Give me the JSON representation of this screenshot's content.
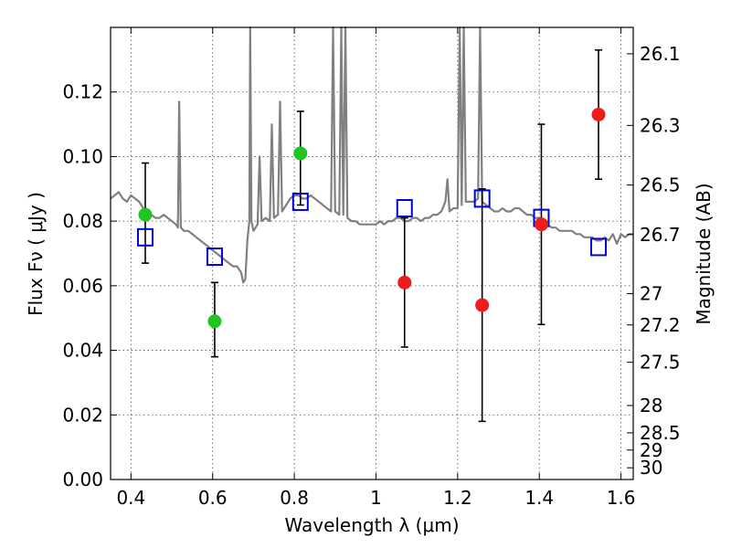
{
  "chart_data": {
    "type": "scatter",
    "xlabel": "Wavelength  λ (μm)",
    "ylabel": "Flux  Fν  ( μJy )",
    "ylabel_right": "Magnitude (AB)",
    "xlim": [
      0.35,
      1.63
    ],
    "ylim": [
      0.0,
      0.14
    ],
    "grid": true,
    "x_ticks": [
      {
        "value": 0.4,
        "label": "0.4"
      },
      {
        "value": 0.6,
        "label": "0.6"
      },
      {
        "value": 0.8,
        "label": "0.8"
      },
      {
        "value": 1.0,
        "label": "1"
      },
      {
        "value": 1.2,
        "label": "1.2"
      },
      {
        "value": 1.4,
        "label": "1.4"
      },
      {
        "value": 1.6,
        "label": "1.6"
      }
    ],
    "y_ticks": [
      {
        "value": 0.0,
        "label": "0.00"
      },
      {
        "value": 0.02,
        "label": "0.02"
      },
      {
        "value": 0.04,
        "label": "0.04"
      },
      {
        "value": 0.06,
        "label": "0.06"
      },
      {
        "value": 0.08,
        "label": "0.08"
      },
      {
        "value": 0.1,
        "label": "0.10"
      },
      {
        "value": 0.12,
        "label": "0.12"
      }
    ],
    "mag_ticks": [
      {
        "value": 26.1,
        "label": "26.1"
      },
      {
        "value": 26.3,
        "label": "26.3"
      },
      {
        "value": 26.5,
        "label": "26.5"
      },
      {
        "value": 26.7,
        "label": "26.7"
      },
      {
        "value": 27.0,
        "label": "27"
      },
      {
        "value": 27.2,
        "label": "27.2"
      },
      {
        "value": 27.5,
        "label": "27.5"
      },
      {
        "value": 28.0,
        "label": "28"
      },
      {
        "value": 28.5,
        "label": "28.5"
      },
      {
        "value": 29.0,
        "label": "29"
      },
      {
        "value": 30.0,
        "label": "30"
      }
    ],
    "series": [
      {
        "color": "#808080",
        "kind": "line",
        "points": [
          [
            0.35,
            0.087
          ],
          [
            0.36,
            0.088
          ],
          [
            0.37,
            0.089
          ],
          [
            0.38,
            0.087
          ],
          [
            0.39,
            0.086
          ],
          [
            0.4,
            0.088
          ],
          [
            0.41,
            0.087
          ],
          [
            0.42,
            0.086
          ],
          [
            0.43,
            0.084
          ],
          [
            0.44,
            0.083
          ],
          [
            0.45,
            0.082
          ],
          [
            0.46,
            0.081
          ],
          [
            0.47,
            0.081
          ],
          [
            0.48,
            0.082
          ],
          [
            0.49,
            0.081
          ],
          [
            0.5,
            0.08
          ],
          [
            0.51,
            0.079
          ],
          [
            0.515,
            0.078
          ],
          [
            0.518,
            0.117
          ],
          [
            0.522,
            0.078
          ],
          [
            0.53,
            0.077
          ],
          [
            0.54,
            0.077
          ],
          [
            0.55,
            0.076
          ],
          [
            0.56,
            0.075
          ],
          [
            0.57,
            0.074
          ],
          [
            0.58,
            0.073
          ],
          [
            0.59,
            0.072
          ],
          [
            0.6,
            0.071
          ],
          [
            0.61,
            0.07
          ],
          [
            0.62,
            0.069
          ],
          [
            0.63,
            0.068
          ],
          [
            0.64,
            0.067
          ],
          [
            0.65,
            0.066
          ],
          [
            0.66,
            0.066
          ],
          [
            0.67,
            0.064
          ],
          [
            0.675,
            0.061
          ],
          [
            0.68,
            0.062
          ],
          [
            0.685,
            0.074
          ],
          [
            0.69,
            0.08
          ],
          [
            0.692,
            0.14
          ],
          [
            0.695,
            0.08
          ],
          [
            0.7,
            0.077
          ],
          [
            0.71,
            0.079
          ],
          [
            0.715,
            0.1
          ],
          [
            0.72,
            0.08
          ],
          [
            0.73,
            0.081
          ],
          [
            0.74,
            0.08
          ],
          [
            0.745,
            0.11
          ],
          [
            0.75,
            0.081
          ],
          [
            0.76,
            0.082
          ],
          [
            0.765,
            0.117
          ],
          [
            0.77,
            0.083
          ],
          [
            0.78,
            0.085
          ],
          [
            0.79,
            0.087
          ],
          [
            0.8,
            0.088
          ],
          [
            0.81,
            0.088
          ],
          [
            0.82,
            0.087
          ],
          [
            0.83,
            0.087
          ],
          [
            0.84,
            0.088
          ],
          [
            0.85,
            0.087
          ],
          [
            0.86,
            0.086
          ],
          [
            0.87,
            0.085
          ],
          [
            0.88,
            0.084
          ],
          [
            0.89,
            0.083
          ],
          [
            0.895,
            0.14
          ],
          [
            0.9,
            0.083
          ],
          [
            0.91,
            0.082
          ],
          [
            0.915,
            0.14
          ],
          [
            0.92,
            0.082
          ],
          [
            0.925,
            0.14
          ],
          [
            0.93,
            0.081
          ],
          [
            0.94,
            0.08
          ],
          [
            0.95,
            0.08
          ],
          [
            0.96,
            0.079
          ],
          [
            0.97,
            0.079
          ],
          [
            0.98,
            0.079
          ],
          [
            0.99,
            0.079
          ],
          [
            1.0,
            0.079
          ],
          [
            1.01,
            0.08
          ],
          [
            1.02,
            0.079
          ],
          [
            1.03,
            0.08
          ],
          [
            1.04,
            0.08
          ],
          [
            1.05,
            0.081
          ],
          [
            1.06,
            0.081
          ],
          [
            1.07,
            0.08
          ],
          [
            1.08,
            0.08
          ],
          [
            1.09,
            0.081
          ],
          [
            1.1,
            0.081
          ],
          [
            1.11,
            0.08
          ],
          [
            1.12,
            0.081
          ],
          [
            1.13,
            0.081
          ],
          [
            1.14,
            0.082
          ],
          [
            1.15,
            0.082
          ],
          [
            1.16,
            0.083
          ],
          [
            1.17,
            0.086
          ],
          [
            1.175,
            0.093
          ],
          [
            1.18,
            0.083
          ],
          [
            1.19,
            0.084
          ],
          [
            1.2,
            0.084
          ],
          [
            1.205,
            0.14
          ],
          [
            1.21,
            0.085
          ],
          [
            1.215,
            0.14
          ],
          [
            1.22,
            0.086
          ],
          [
            1.23,
            0.086
          ],
          [
            1.24,
            0.086
          ],
          [
            1.25,
            0.087
          ],
          [
            1.255,
            0.14
          ],
          [
            1.26,
            0.086
          ],
          [
            1.27,
            0.085
          ],
          [
            1.28,
            0.084
          ],
          [
            1.29,
            0.083
          ],
          [
            1.3,
            0.083
          ],
          [
            1.31,
            0.084
          ],
          [
            1.32,
            0.083
          ],
          [
            1.33,
            0.083
          ],
          [
            1.34,
            0.084
          ],
          [
            1.35,
            0.084
          ],
          [
            1.36,
            0.083
          ],
          [
            1.37,
            0.082
          ],
          [
            1.38,
            0.082
          ],
          [
            1.39,
            0.081
          ],
          [
            1.4,
            0.081
          ],
          [
            1.41,
            0.08
          ],
          [
            1.42,
            0.079
          ],
          [
            1.43,
            0.078
          ],
          [
            1.44,
            0.078
          ],
          [
            1.45,
            0.077
          ],
          [
            1.46,
            0.077
          ],
          [
            1.47,
            0.077
          ],
          [
            1.48,
            0.077
          ],
          [
            1.49,
            0.076
          ],
          [
            1.5,
            0.076
          ],
          [
            1.51,
            0.075
          ],
          [
            1.52,
            0.075
          ],
          [
            1.53,
            0.075
          ],
          [
            1.54,
            0.074
          ],
          [
            1.55,
            0.074
          ],
          [
            1.56,
            0.075
          ],
          [
            1.57,
            0.074
          ],
          [
            1.58,
            0.076
          ],
          [
            1.59,
            0.073
          ],
          [
            1.6,
            0.076
          ],
          [
            1.61,
            0.075
          ],
          [
            1.62,
            0.076
          ],
          [
            1.63,
            0.076
          ]
        ]
      },
      {
        "color": "#0000dd",
        "kind": "open-square",
        "points": [
          [
            0.435,
            0.075
          ],
          [
            0.605,
            0.069
          ],
          [
            0.815,
            0.086
          ],
          [
            1.07,
            0.084
          ],
          [
            1.26,
            0.087
          ],
          [
            1.405,
            0.081
          ],
          [
            1.545,
            0.072
          ]
        ]
      },
      {
        "color": "#22c422",
        "kind": "filled-circle",
        "points": [
          {
            "x": 0.435,
            "y": 0.082,
            "lo": 0.067,
            "hi": 0.098
          },
          {
            "x": 0.605,
            "y": 0.049,
            "lo": 0.038,
            "hi": 0.061
          },
          {
            "x": 0.815,
            "y": 0.101,
            "lo": 0.085,
            "hi": 0.114
          }
        ]
      },
      {
        "color": "#ee1c1c",
        "kind": "filled-circle",
        "points": [
          {
            "x": 1.07,
            "y": 0.061,
            "lo": 0.041,
            "hi": 0.081
          },
          {
            "x": 1.26,
            "y": 0.054,
            "lo": 0.018,
            "hi": 0.09
          },
          {
            "x": 1.405,
            "y": 0.079,
            "lo": 0.048,
            "hi": 0.11
          },
          {
            "x": 1.545,
            "y": 0.113,
            "lo": 0.093,
            "hi": 0.133
          }
        ]
      }
    ]
  }
}
